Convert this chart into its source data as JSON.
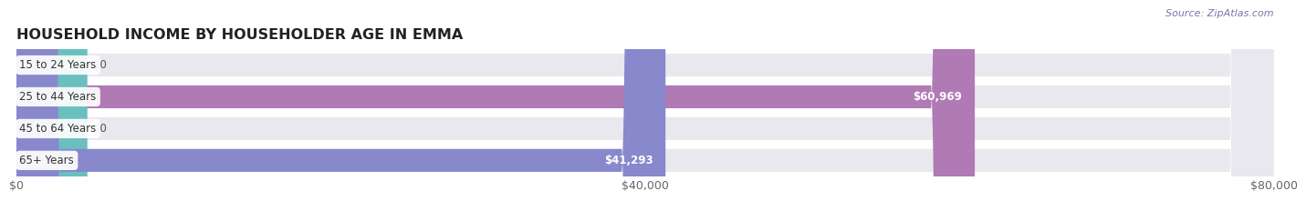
{
  "title": "HOUSEHOLD INCOME BY HOUSEHOLDER AGE IN EMMA",
  "source": "Source: ZipAtlas.com",
  "categories": [
    "15 to 24 Years",
    "25 to 44 Years",
    "45 to 64 Years",
    "65+ Years"
  ],
  "values": [
    0,
    60969,
    0,
    41293
  ],
  "bar_colors": [
    "#85bcd6",
    "#b07ab5",
    "#6bbfbf",
    "#8888cc"
  ],
  "bar_bg_color": "#e8e8ee",
  "xlim": [
    0,
    80000
  ],
  "xticks": [
    0,
    40000,
    80000
  ],
  "xtick_labels": [
    "$0",
    "$40,000",
    "$80,000"
  ],
  "title_fontsize": 11.5,
  "bar_height": 0.72,
  "background_color": "#ffffff",
  "source_color": "#7777aa",
  "grid_color": "#ccccdd"
}
